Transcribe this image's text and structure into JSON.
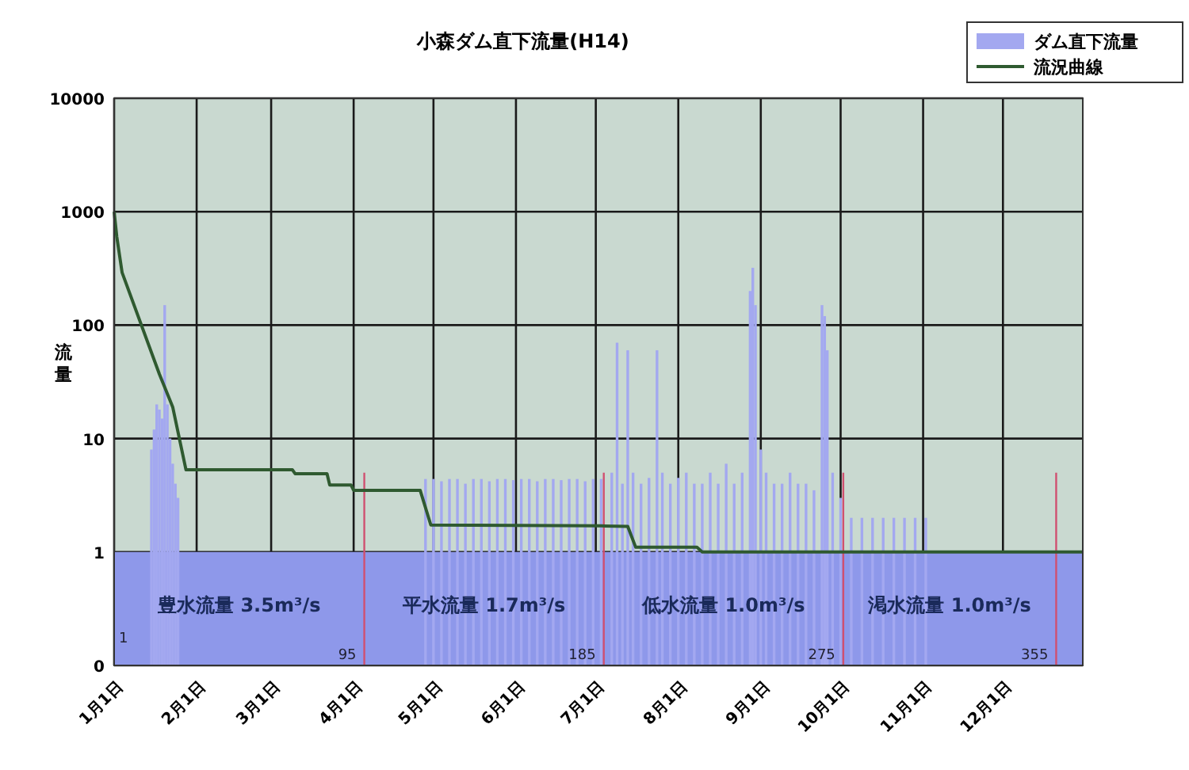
{
  "chart_data": {
    "type": "bar",
    "title": "小森ダム直下流量(H14)",
    "ylabel": "流量",
    "log": "y",
    "grid": true,
    "legend": "top right",
    "xlim": [
      "--01-01",
      "--12-31"
    ],
    "xticks": [
      {
        "value": "--01-01",
        "label": "1月1日"
      },
      {
        "value": "--02-01",
        "label": "2月1日"
      },
      {
        "value": "--03-01",
        "label": "3月1日"
      },
      {
        "value": "--04-01",
        "label": "4月1日"
      },
      {
        "value": "--05-01",
        "label": "5月1日"
      },
      {
        "value": "--06-01",
        "label": "6月1日"
      },
      {
        "value": "--07-01",
        "label": "7月1日"
      },
      {
        "value": "--08-01",
        "label": "8月1日"
      },
      {
        "value": "--09-01",
        "label": "9月1日"
      },
      {
        "value": "--10-01",
        "label": "10月1日"
      },
      {
        "value": "--11-01",
        "label": "11月1日"
      },
      {
        "value": "--12-01",
        "label": "12月1日"
      }
    ],
    "ylim": [
      0.1,
      10000
    ],
    "yticks": [
      {
        "value": 0.1,
        "label": "0"
      },
      1,
      10,
      100,
      1000,
      10000
    ],
    "series": [
      {
        "name": "ダム直下流量",
        "color": "#a3a8f0",
        "x": [
          "--01-15",
          "--01-16",
          "--01-17",
          "--01-18",
          "--01-19",
          "--01-20",
          "--01-21",
          "--01-22",
          "--01-23",
          "--01-24",
          "--01-25",
          "--04-28",
          "--05-01",
          "--05-04",
          "--05-07",
          "--05-10",
          "--05-13",
          "--05-16",
          "--05-19",
          "--05-22",
          "--05-25",
          "--05-28",
          "--05-31",
          "--06-03",
          "--06-06",
          "--06-09",
          "--06-12",
          "--06-15",
          "--06-18",
          "--06-21",
          "--06-24",
          "--06-27",
          "--06-30",
          "--07-03",
          "--07-07",
          "--07-09",
          "--07-11",
          "--07-13",
          "--07-15",
          "--07-18",
          "--07-21",
          "--07-24",
          "--07-26",
          "--07-29",
          "--08-01",
          "--08-04",
          "--08-07",
          "--08-10",
          "--08-13",
          "--08-16",
          "--08-19",
          "--08-22",
          "--08-25",
          "--08-28",
          "--08-29",
          "--08-30",
          "--09-01",
          "--09-03",
          "--09-06",
          "--09-09",
          "--09-12",
          "--09-15",
          "--09-18",
          "--09-21",
          "--09-24",
          "--09-25",
          "--09-26",
          "--09-28",
          "--10-01",
          "--10-05",
          "--10-09",
          "--10-13",
          "--10-17",
          "--10-21",
          "--10-25",
          "--10-29",
          "--11-02"
        ],
        "values": [
          8,
          12,
          20,
          18,
          15,
          150,
          20,
          10,
          6,
          4,
          3,
          4.4,
          4.4,
          4.2,
          4.4,
          4.4,
          4,
          4.4,
          4.4,
          4.2,
          4.4,
          4.4,
          4.3,
          4.4,
          4.4,
          4.2,
          4.4,
          4.4,
          4.3,
          4.4,
          4.4,
          4.2,
          4.4,
          4.4,
          5,
          70,
          4,
          60,
          5,
          4,
          4.5,
          60,
          5,
          4,
          4.5,
          5,
          4,
          4,
          5,
          4,
          6,
          4,
          5,
          200,
          320,
          150,
          8,
          5,
          4,
          4,
          5,
          4,
          4,
          3.5,
          150,
          120,
          60,
          5,
          3,
          2,
          2,
          2,
          2,
          2,
          2,
          2,
          2
        ]
      },
      {
        "name": "流況曲線",
        "type": "line",
        "color": "#2f5a30",
        "x": [
          "--01-01",
          "--01-02",
          "--01-04",
          "--01-18",
          "--01-23",
          "--01-28",
          "--03-09",
          "--03-10",
          "--03-22",
          "--03-23",
          "--03-31",
          "--04-01",
          "--04-26",
          "--04-30",
          "--07-03",
          "--07-13",
          "--07-16",
          "--08-08",
          "--08-10",
          "--12-31"
        ],
        "values": [
          1000,
          600,
          290,
          37,
          19,
          5.3,
          5.3,
          4.9,
          4.9,
          3.9,
          3.9,
          3.5,
          3.5,
          1.73,
          1.7,
          1.68,
          1.1,
          1.1,
          1,
          1
        ]
      }
    ],
    "bands": [
      {
        "axis": "y",
        "from": 0.1,
        "to": 1,
        "color": "#8e98ea"
      }
    ],
    "ref_lines": [
      {
        "axis": "x",
        "value": "--04-05",
        "label": "95",
        "color": "#d05070"
      },
      {
        "axis": "x",
        "value": "--07-04",
        "label": "185",
        "color": "#d05070"
      },
      {
        "axis": "x",
        "value": "--10-02",
        "label": "275",
        "color": "#d05070"
      },
      {
        "axis": "x",
        "value": "--12-21",
        "label": "355",
        "color": "#d05070"
      }
    ],
    "annotations": [
      "豊水流量 3.5m³/s",
      "平水流量 1.7m³/s",
      "低水流量 1.0m³/s",
      "渇水流量 1.0m³/s",
      {
        "text": "1",
        "x": "--01-01",
        "y": 0.15
      }
    ]
  }
}
